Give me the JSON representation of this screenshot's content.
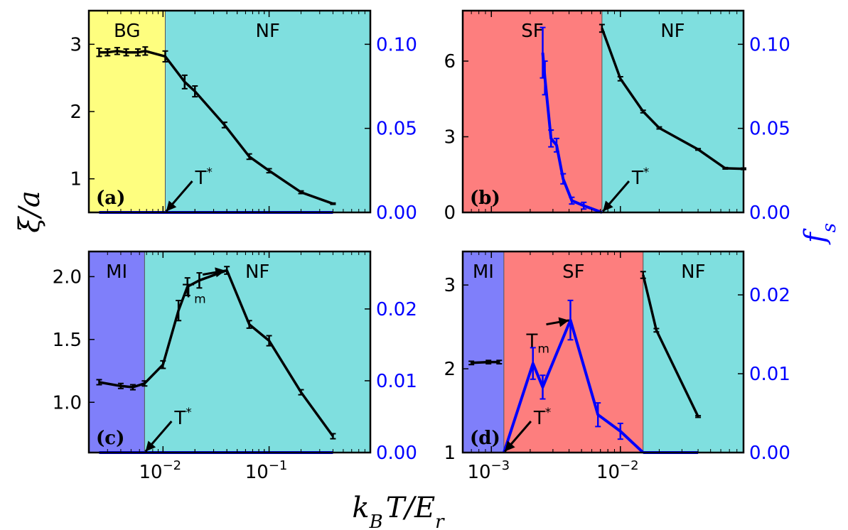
{
  "colors": {
    "bg": "#fe7b7b",
    "nf": "#7fdfdf",
    "sf": "#fd7e7e",
    "mi": "#7f7ffa",
    "axis_right": "#0000ff",
    "line_black": "#000000",
    "line_blue": "#0000ff"
  },
  "figure": {
    "ylabel": "ξ/a",
    "ylabel_right": "f",
    "ylabel_right_sub": "s",
    "xlabel_main": "k",
    "xlabel_sub_b": "B",
    "xlabel_rest": "T/E",
    "xlabel_sub_r": "r"
  },
  "chart_data": [
    {
      "id": "a",
      "type": "line",
      "panel_label": "(a)",
      "xscale": "log",
      "xlim": [
        0.002,
        0.9
      ],
      "ylim": [
        0.5,
        3.5
      ],
      "ylim_right": [
        0.0,
        0.12
      ],
      "xticks": [
        {
          "value": 0.01,
          "base": "10",
          "exp": "−2"
        },
        {
          "value": 0.1,
          "base": "10",
          "exp": "−1"
        }
      ],
      "yticks": [
        {
          "value": 1,
          "label": "1"
        },
        {
          "value": 2,
          "label": "2"
        },
        {
          "value": 3,
          "label": "3"
        }
      ],
      "yticks_right": [
        {
          "value": 0.0,
          "label": "0.00"
        },
        {
          "value": 0.05,
          "label": "0.05"
        },
        {
          "value": 0.1,
          "label": "0.10"
        }
      ],
      "regions": [
        {
          "label": "BG",
          "from": 0.002,
          "to": 0.0105,
          "color": "#fefe7f"
        },
        {
          "label": "NF",
          "from": 0.0105,
          "to": 0.9,
          "color": "#7fdfdf"
        }
      ],
      "series": [
        {
          "name": "ξ/a",
          "axis": "left",
          "color": "#000000",
          "x": [
            0.0025,
            0.003,
            0.0037,
            0.0045,
            0.0058,
            0.0068,
            0.0105,
            0.016,
            0.02,
            0.038,
            0.065,
            0.1,
            0.2,
            0.4
          ],
          "y": [
            2.88,
            2.88,
            2.9,
            2.88,
            2.88,
            2.9,
            2.82,
            2.44,
            2.3,
            1.8,
            1.33,
            1.12,
            0.8,
            0.63
          ],
          "err": [
            0.06,
            0.05,
            0.05,
            0.05,
            0.05,
            0.06,
            0.08,
            0.1,
            0.08,
            0.04,
            0.04,
            0.03,
            0.02,
            0.01
          ]
        },
        {
          "name": "f_s",
          "axis": "right",
          "color": "#0000ff",
          "x": [
            0.0025,
            0.4
          ],
          "y": [
            0.0,
            0.0
          ],
          "err": [
            0,
            0
          ]
        }
      ],
      "annotations": [
        {
          "text": "T",
          "sup": "*",
          "x": 0.0105,
          "y_right": 0.0
        }
      ]
    },
    {
      "id": "b",
      "type": "line",
      "panel_label": "(b)",
      "xscale": "log",
      "xlim": [
        0.0006,
        0.09
      ],
      "ylim": [
        0,
        8
      ],
      "ylim_right": [
        0.0,
        0.12
      ],
      "xticks": [
        {
          "value": 0.001,
          "base": "10",
          "exp": "−3"
        },
        {
          "value": 0.01,
          "base": "10",
          "exp": "−2"
        }
      ],
      "yticks": [
        {
          "value": 0,
          "label": "0"
        },
        {
          "value": 3,
          "label": "3"
        },
        {
          "value": 6,
          "label": "6"
        }
      ],
      "yticks_right": [
        {
          "value": 0.0,
          "label": "0.00"
        },
        {
          "value": 0.05,
          "label": "0.05"
        },
        {
          "value": 0.1,
          "label": "0.10"
        }
      ],
      "regions": [
        {
          "label": "SF",
          "from": 0.0006,
          "to": 0.0072,
          "color": "#fd7e7e"
        },
        {
          "label": "NF",
          "from": 0.0072,
          "to": 0.09,
          "color": "#7fdfdf"
        }
      ],
      "series": [
        {
          "name": "ξ/a",
          "axis": "left",
          "color": "#000000",
          "x": [
            0.0072,
            0.01,
            0.015,
            0.02,
            0.04,
            0.065,
            0.09
          ],
          "y": [
            7.3,
            5.3,
            4.0,
            3.35,
            2.5,
            1.75,
            1.73
          ],
          "err": [
            0.15,
            0.08,
            0.05,
            0.04,
            0.03,
            0.03,
            0.03
          ]
        },
        {
          "name": "f_s",
          "axis": "right",
          "color": "#0000ff",
          "x": [
            0.0025,
            0.0026,
            0.0029,
            0.0032,
            0.0036,
            0.0042,
            0.0052,
            0.0072
          ],
          "y": [
            0.095,
            0.08,
            0.044,
            0.04,
            0.02,
            0.007,
            0.004,
            0.0
          ],
          "err": [
            0.015,
            0.01,
            0.005,
            0.004,
            0.003,
            0.002,
            0.002,
            0.0
          ]
        }
      ],
      "annotations": [
        {
          "text": "T",
          "sup": "*",
          "x": 0.0072,
          "y_right": 0.0
        }
      ]
    },
    {
      "id": "c",
      "type": "line",
      "panel_label": "(c)",
      "xscale": "log",
      "xlim": [
        0.002,
        0.9
      ],
      "ylim": [
        0.6,
        2.2
      ],
      "ylim_right": [
        0.0,
        0.028
      ],
      "xticks": [
        {
          "value": 0.01,
          "base": "10",
          "exp": "−2"
        },
        {
          "value": 0.1,
          "base": "10",
          "exp": "−1"
        }
      ],
      "yticks": [
        {
          "value": 1.0,
          "label": "1.0"
        },
        {
          "value": 1.5,
          "label": "1.5"
        },
        {
          "value": 2.0,
          "label": "2.0"
        }
      ],
      "yticks_right": [
        {
          "value": 0.0,
          "label": "0.00"
        },
        {
          "value": 0.01,
          "label": "0.01"
        },
        {
          "value": 0.02,
          "label": "0.02"
        }
      ],
      "regions": [
        {
          "label": "MI",
          "from": 0.002,
          "to": 0.0067,
          "color": "#7f7ffa"
        },
        {
          "label": "NF",
          "from": 0.0067,
          "to": 0.9,
          "color": "#7fdfdf"
        }
      ],
      "series": [
        {
          "name": "ξ/a",
          "axis": "left",
          "color": "#000000",
          "x": [
            0.0025,
            0.004,
            0.0052,
            0.0067,
            0.01,
            0.014,
            0.017,
            0.022,
            0.04,
            0.065,
            0.1,
            0.2,
            0.4
          ],
          "y": [
            1.16,
            1.13,
            1.12,
            1.15,
            1.3,
            1.73,
            1.92,
            1.97,
            2.05,
            1.62,
            1.49,
            1.08,
            0.73
          ],
          "err": [
            0.02,
            0.02,
            0.02,
            0.02,
            0.03,
            0.08,
            0.07,
            0.06,
            0.03,
            0.03,
            0.04,
            0.02,
            0.02
          ]
        },
        {
          "name": "f_s",
          "axis": "right",
          "color": "#0000ff",
          "x": [
            0.0025,
            0.4
          ],
          "y": [
            0.0,
            0.0
          ],
          "err": [
            0,
            0
          ]
        }
      ],
      "annotations": [
        {
          "text": "T",
          "sup": "*",
          "x": 0.0067,
          "y_right": 0.0
        },
        {
          "text": "T",
          "sub": "m",
          "x": 0.04,
          "y_left": 2.05
        }
      ]
    },
    {
      "id": "d",
      "type": "line",
      "panel_label": "(d)",
      "xscale": "log",
      "xlim": [
        0.0006,
        0.09
      ],
      "ylim": [
        1.0,
        3.4
      ],
      "ylim_right": [
        0.0,
        0.0255
      ],
      "xticks": [
        {
          "value": 0.001,
          "base": "10",
          "exp": "−3"
        },
        {
          "value": 0.01,
          "base": "10",
          "exp": "−2"
        }
      ],
      "yticks": [
        {
          "value": 1,
          "label": "1"
        },
        {
          "value": 2,
          "label": "2"
        },
        {
          "value": 3,
          "label": "3"
        }
      ],
      "yticks_right": [
        {
          "value": 0.0,
          "label": "0.00"
        },
        {
          "value": 0.01,
          "label": "0.01"
        },
        {
          "value": 0.02,
          "label": "0.02"
        }
      ],
      "regions": [
        {
          "label": "MI",
          "from": 0.0006,
          "to": 0.00125,
          "color": "#7f7ffa"
        },
        {
          "label": "SF",
          "from": 0.00125,
          "to": 0.015,
          "color": "#fd7e7e"
        },
        {
          "label": "NF",
          "from": 0.015,
          "to": 0.09,
          "color": "#7fdfdf"
        }
      ],
      "series": [
        {
          "name": "ξ/a",
          "axis": "left",
          "color": "#000000",
          "x": [
            0.0007,
            0.00095,
            0.00115
          ],
          "y": [
            2.07,
            2.08,
            2.08
          ],
          "err": [
            0.02,
            0.02,
            0.02
          ]
        },
        {
          "name": "ξ/a (NF)",
          "axis": "left",
          "color": "#000000",
          "x": [
            0.015,
            0.019,
            0.04
          ],
          "y": [
            3.12,
            2.46,
            1.43
          ],
          "err": [
            0.04,
            0.02,
            0.01
          ]
        },
        {
          "name": "f_s",
          "axis": "right",
          "color": "#0000ff",
          "x": [
            0.00125,
            0.0021,
            0.0025,
            0.0041,
            0.0067,
            0.01,
            0.015
          ],
          "y": [
            0.0,
            0.0113,
            0.0083,
            0.0168,
            0.0048,
            0.0027,
            0.0
          ],
          "err": [
            0.0,
            0.002,
            0.0015,
            0.0025,
            0.0015,
            0.001,
            0.0
          ]
        },
        {
          "name": "f_s (NF)",
          "axis": "right",
          "color": "#0000ff",
          "x": [
            0.015,
            0.04
          ],
          "y": [
            0.0,
            0.0
          ],
          "err": [
            0,
            0
          ]
        }
      ],
      "annotations": [
        {
          "text": "T",
          "sup": "*",
          "x": 0.00125,
          "y_right": 0.0
        },
        {
          "text": "T",
          "sub": "m",
          "x": 0.0041,
          "y_right": 0.0168
        }
      ]
    }
  ]
}
